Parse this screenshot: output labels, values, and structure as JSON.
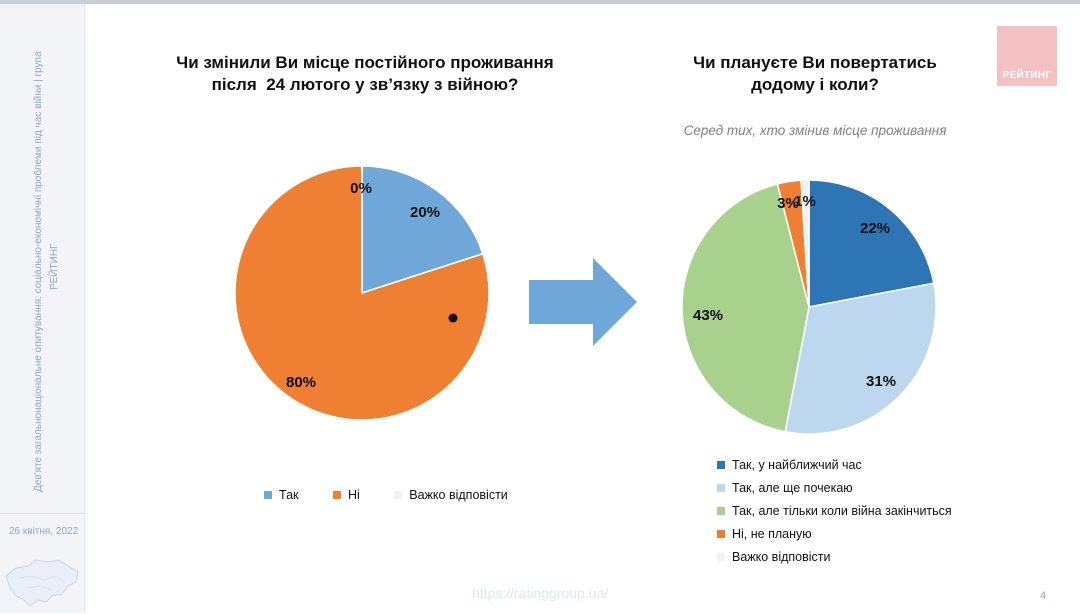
{
  "sidebar": {
    "vertical_text": "Дев'яте загальнонаціональне опитування: соціально-економічні проблеми під час війни | група",
    "vertical_brand": "РЕЙТИНГ",
    "date": "26 квітня, 2022"
  },
  "logo": {
    "text": "РЕЙТИНГ"
  },
  "footer": {
    "url": "https://ratinggroup.ua/",
    "page": "4"
  },
  "arrow_icon": "right-arrow-icon",
  "colors": {
    "tak": "#6fa7d8",
    "ni": "#ee7f33",
    "vazhko": "#f2f2f2",
    "soon": "#2e75b6",
    "later": "#bdd7ee",
    "after_war": "#a9d18e",
    "no_plan": "#ee7f33",
    "hard": "#f2f2f2"
  },
  "chart_data": [
    {
      "type": "pie",
      "title_line1": "Чи змінили Ви місце постійного проживання",
      "title_line2": "після  24 лютого у зв’язку з війною?",
      "slices": [
        {
          "label": "Так",
          "value": 20,
          "value_label": "20%"
        },
        {
          "label": "Ні",
          "value": 80,
          "value_label": "80%"
        },
        {
          "label": "Важко відповісти",
          "value": 0,
          "value_label": "0%"
        }
      ]
    },
    {
      "type": "pie",
      "title_line1": "Чи плануєте Ви повертатись",
      "title_line2": "додому і коли?",
      "subtitle": "Серед тих, хто змінив місце проживання",
      "slices": [
        {
          "label": "Так, у найближчий час",
          "value": 22,
          "value_label": "22%"
        },
        {
          "label": "Так, але ще почекаю",
          "value": 31,
          "value_label": "31%"
        },
        {
          "label": "Так, але тільки коли війна закінчиться",
          "value": 43,
          "value_label": "43%"
        },
        {
          "label": "Ні, не планую",
          "value": 3,
          "value_label": "3%"
        },
        {
          "label": "Важко відповісти",
          "value": 1,
          "value_label": "1%"
        }
      ]
    }
  ]
}
